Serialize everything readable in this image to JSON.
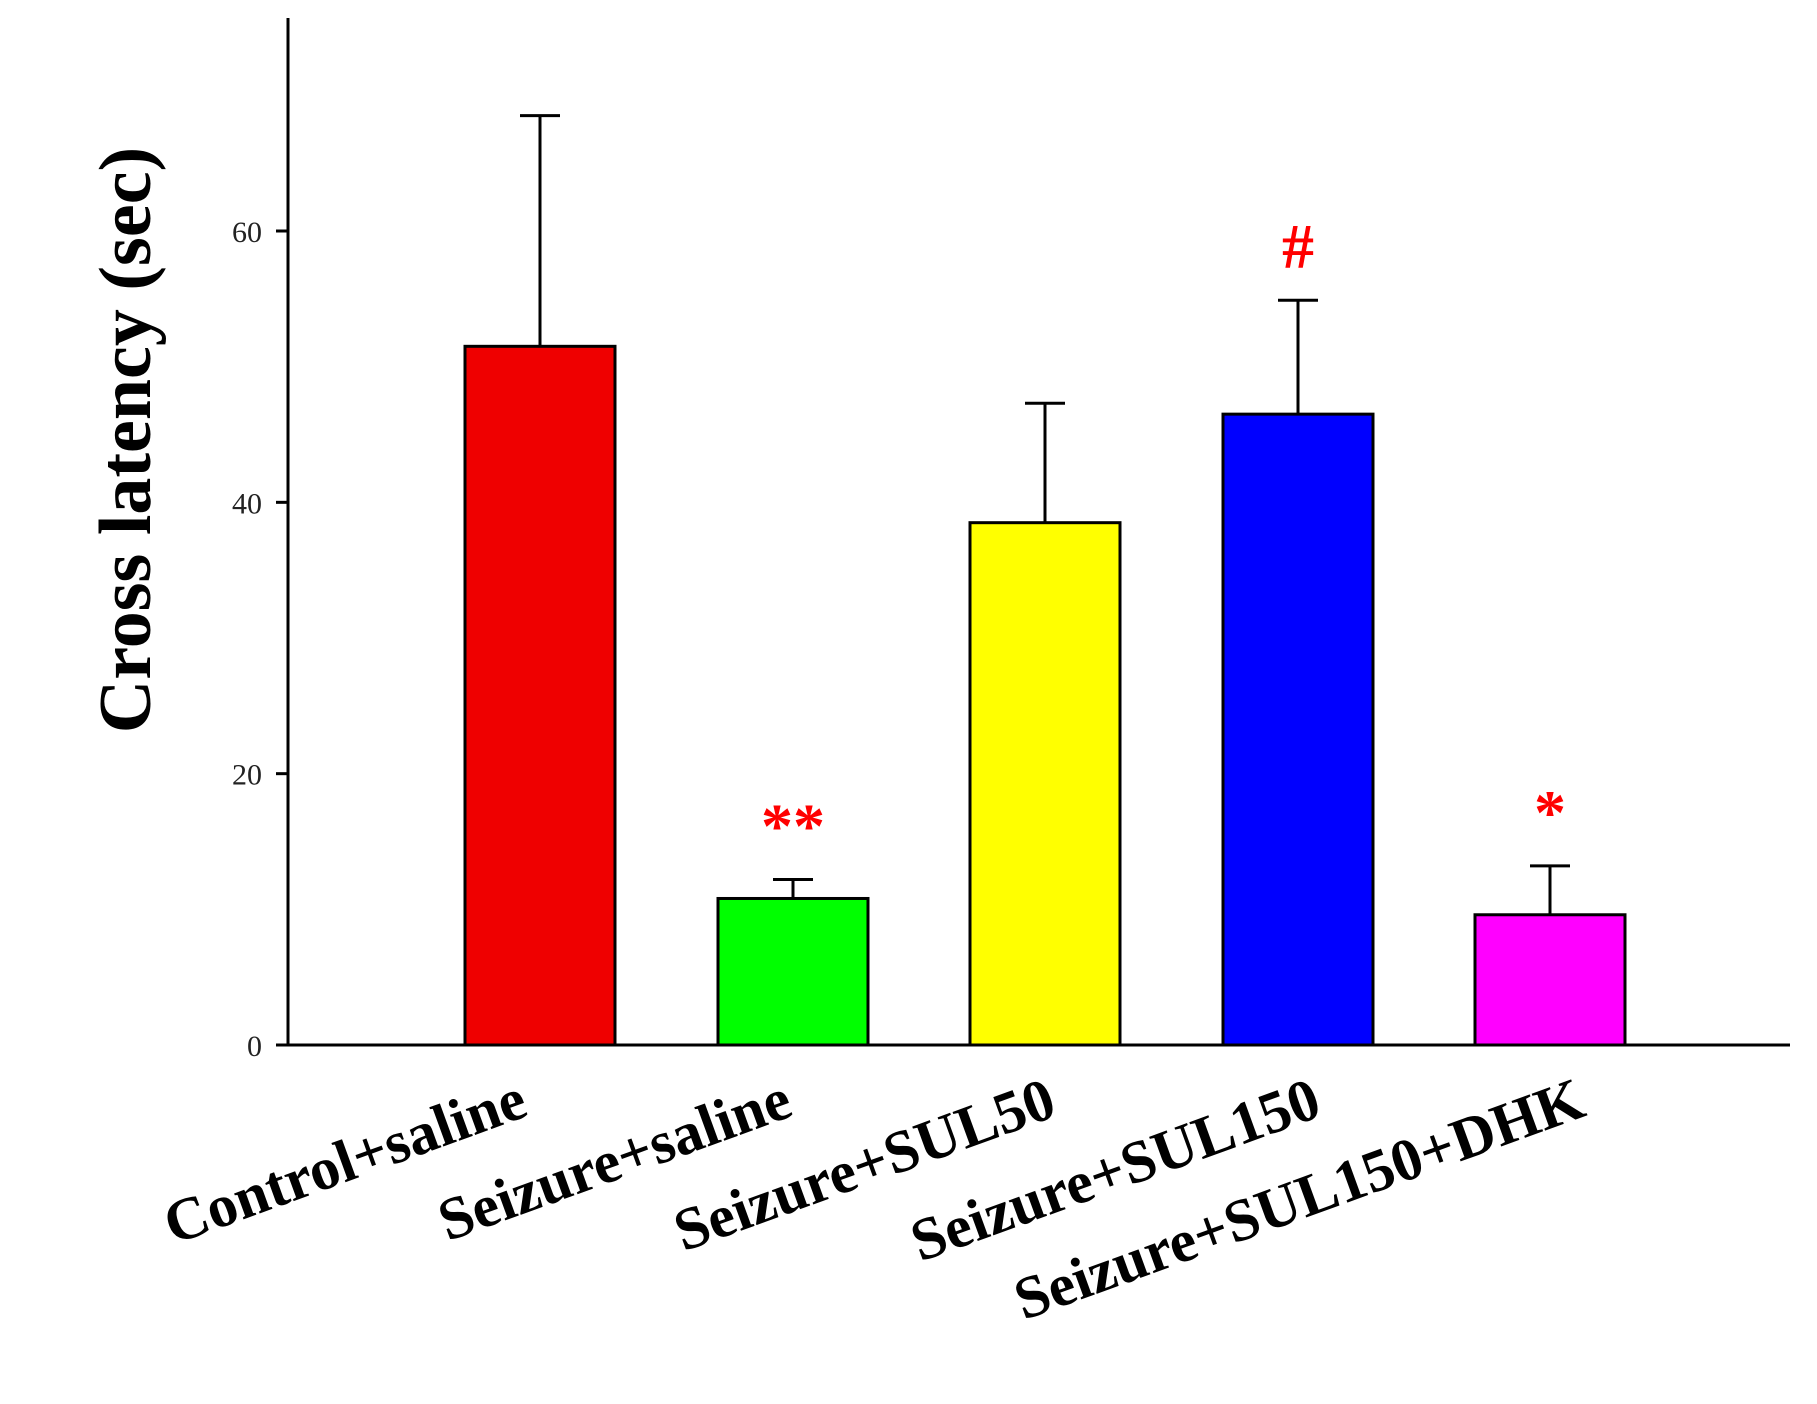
{
  "chart_data": {
    "type": "bar",
    "title": "",
    "xlabel": "",
    "ylabel": "Cross latency (sec)",
    "ylim": [
      0,
      75
    ],
    "yticks": [
      0,
      20,
      40,
      60
    ],
    "grid": false,
    "legend": "none",
    "categories": [
      "Control+saline",
      "Seizure+saline",
      "Seizure+SUL50",
      "Seizure+SUL150",
      "Seizure+SUL150+DHK"
    ],
    "values": [
      51.5,
      10.8,
      38.5,
      46.5,
      9.6
    ],
    "errors": [
      17.0,
      1.4,
      8.8,
      8.4,
      3.6
    ],
    "colors": [
      "#ef0000",
      "#00ff00",
      "#ffff00",
      "#0000ff",
      "#ff00ff"
    ],
    "annotations": [
      "",
      "**",
      "",
      "#",
      "*"
    ],
    "annotation_color": "#ff0000"
  }
}
